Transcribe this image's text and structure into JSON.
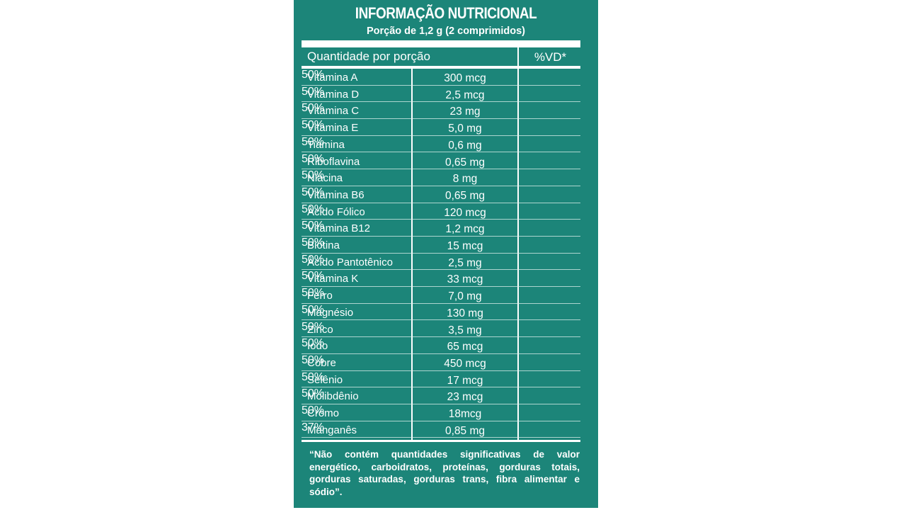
{
  "label": {
    "title": "INFORMAÇÃO NUTRICIONAL",
    "serving": "Porção de 1,2 g (2 comprimidos)",
    "header": {
      "quantity_label": "Quantidade por porção",
      "dv_label": "%VD*"
    },
    "rows": [
      {
        "name": "Vitamina A",
        "amount": "300 mcg",
        "dv": "50%"
      },
      {
        "name": "Vitamina D",
        "amount": "2,5 mcg",
        "dv": "50%"
      },
      {
        "name": "Vitamina C",
        "amount": "23 mg",
        "dv": "50%"
      },
      {
        "name": "Vitamina E",
        "amount": "5,0 mg",
        "dv": "50%"
      },
      {
        "name": "Tiamina",
        "amount": "0,6 mg",
        "dv": "50%"
      },
      {
        "name": "Riboflavina",
        "amount": "0,65 mg",
        "dv": "50%"
      },
      {
        "name": "Niacina",
        "amount": "8 mg",
        "dv": "50%"
      },
      {
        "name": "Vitamina B6",
        "amount": "0,65 mg",
        "dv": "50%"
      },
      {
        "name": "Àcido Fólico",
        "amount": "120 mcg",
        "dv": "50%"
      },
      {
        "name": "Vitamina B12",
        "amount": "1,2 mcg",
        "dv": "50%"
      },
      {
        "name": "Biotina",
        "amount": "15 mcg",
        "dv": "50%"
      },
      {
        "name": "Àcido Pantotênico",
        "amount": "2,5 mg",
        "dv": "50%"
      },
      {
        "name": "Vitamina K",
        "amount": "33 mcg",
        "dv": "50%"
      },
      {
        "name": "Ferro",
        "amount": "7,0 mg",
        "dv": "50%"
      },
      {
        "name": "Magnésio",
        "amount": "130 mg",
        "dv": "50%"
      },
      {
        "name": "Zinco",
        "amount": "3,5 mg",
        "dv": "50%"
      },
      {
        "name": "Iodo",
        "amount": "65 mcg",
        "dv": "50%"
      },
      {
        "name": "Cobre",
        "amount": "450 mcg",
        "dv": "50%"
      },
      {
        "name": "Selênio",
        "amount": "17 mcg",
        "dv": "50%"
      },
      {
        "name": "Molibdênio",
        "amount": "23 mcg",
        "dv": "50%"
      },
      {
        "name": "Cromo",
        "amount": "18mcg",
        "dv": "50%"
      },
      {
        "name": "Manganês",
        "amount": "0,85 mg",
        "dv": "37%"
      }
    ],
    "footnote": "“Não contém quantidades significativas de valor energético, carboidratos, proteínas, gorduras totais, gorduras saturadas, gorduras trans, fibra alimentar e sódio”."
  },
  "colors": {
    "background": "#1c8579",
    "text": "#ffffff",
    "page": "#ffffff"
  }
}
